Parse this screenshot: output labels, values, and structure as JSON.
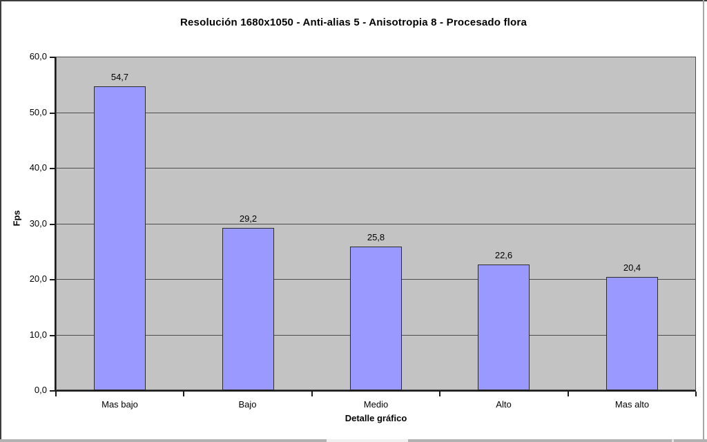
{
  "chart_data": {
    "type": "bar",
    "title": "Resolución 1680x1050 - Anti-alias 5 - Anisotropia 8 - Procesado flora",
    "xlabel": "Detalle gráfico",
    "ylabel": "Fps",
    "categories": [
      "Mas bajo",
      "Bajo",
      "Medio",
      "Alto",
      "Mas alto"
    ],
    "values": [
      54.7,
      29.2,
      25.8,
      22.6,
      20.4
    ],
    "value_labels": [
      "54,7",
      "29,2",
      "25,8",
      "22,6",
      "20,4"
    ],
    "ylim": [
      0,
      60
    ],
    "ytick_step": 10,
    "ytick_labels": [
      "0,0",
      "10,0",
      "20,0",
      "30,0",
      "40,0",
      "50,0",
      "60,0"
    ],
    "grid": true,
    "legend": false,
    "colors": {
      "bar_fill": "#9999ff",
      "bar_border": "#2b2b2b",
      "plot_background": "#c3c3c3",
      "gridline": "#4d4d4d",
      "axis": "#1a1a1a",
      "page_background": "#ffffff"
    }
  }
}
